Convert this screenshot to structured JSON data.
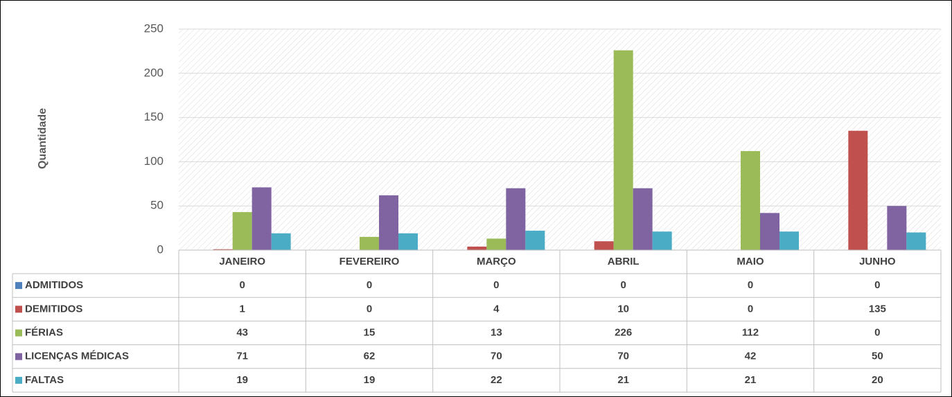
{
  "chart_data": {
    "type": "bar",
    "y_label": "Quantidade",
    "categories": [
      "JANEIRO",
      "FEVEREIRO",
      "MARÇO",
      "ABRIL",
      "MAIO",
      "JUNHO"
    ],
    "series": [
      {
        "name": "ADMITIDOS",
        "color": "#4f81bd",
        "values": [
          0,
          0,
          0,
          0,
          0,
          0
        ]
      },
      {
        "name": "DEMITIDOS",
        "color": "#c0504d",
        "values": [
          1,
          0,
          4,
          10,
          0,
          135
        ]
      },
      {
        "name": "FÉRIAS",
        "color": "#9bbb59",
        "values": [
          43,
          15,
          13,
          226,
          112,
          0
        ]
      },
      {
        "name": "LICENÇAS MÉDICAS",
        "color": "#8064a2",
        "values": [
          71,
          62,
          70,
          70,
          42,
          50
        ]
      },
      {
        "name": "FALTAS",
        "color": "#4bacc6",
        "values": [
          19,
          19,
          22,
          21,
          21,
          20
        ]
      }
    ],
    "ylim": [
      0,
      250
    ],
    "yticks": [
      0,
      50,
      100,
      150,
      200,
      250
    ],
    "grid": true
  }
}
